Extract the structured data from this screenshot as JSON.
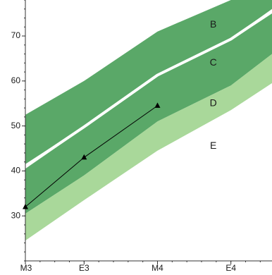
{
  "chart_data": {
    "type": "area",
    "title": "",
    "xlabel": "",
    "ylabel": "",
    "x_categories": [
      "M3",
      "E3",
      "M4",
      "E4"
    ],
    "x_positions": [
      0,
      1,
      2.25,
      3.5
    ],
    "xlim": [
      0,
      4.2
    ],
    "ylim": [
      20,
      78
    ],
    "y_ticks": [
      30,
      40,
      50,
      60,
      70
    ],
    "grid": false,
    "bands": [
      {
        "label": "B",
        "color": "#5aa868",
        "x": [
          0,
          1,
          2.25,
          3.5,
          4.2
        ],
        "lower": [
          41.5,
          50,
          61.5,
          69.5,
          76
        ],
        "upper": [
          52.5,
          60,
          71,
          78,
          78
        ]
      },
      {
        "label": "C",
        "color": "#5aa868",
        "x": [
          0,
          1,
          2.25,
          3.5,
          4.2
        ],
        "lower": [
          30.5,
          39,
          51,
          59,
          66
        ],
        "upper": [
          40.5,
          49.5,
          61,
          69,
          75
        ]
      },
      {
        "label": "D",
        "color": "#a9d89a",
        "x": [
          0,
          1,
          2.25,
          3.5,
          4.2
        ],
        "lower": [
          24.5,
          33.5,
          44.5,
          53.5,
          59.5
        ],
        "upper": [
          30.5,
          39,
          51,
          59,
          66
        ]
      },
      {
        "label": "E",
        "color": "#ffffff",
        "x": [
          0,
          1,
          2.25,
          3.5,
          4.2
        ],
        "lower": [
          20,
          20,
          20,
          20,
          20
        ],
        "upper": [
          24.5,
          33.5,
          44.5,
          53.5,
          59.5
        ]
      }
    ],
    "white_line": {
      "color": "#ffffff",
      "x": [
        0,
        1,
        2.25,
        3.5,
        4.2
      ],
      "y": [
        41,
        49.8,
        61.3,
        69.3,
        75.5
      ]
    },
    "series": [
      {
        "x": [
          0,
          1,
          2.25
        ],
        "y": [
          32,
          43,
          54.5
        ],
        "color": "#000000"
      }
    ],
    "label_positions": [
      {
        "label": "B",
        "x": 3.2,
        "y": 72.5
      },
      {
        "label": "C",
        "x": 3.2,
        "y": 64
      },
      {
        "label": "D",
        "x": 3.2,
        "y": 55
      },
      {
        "label": "E",
        "x": 3.2,
        "y": 45.5
      }
    ]
  }
}
